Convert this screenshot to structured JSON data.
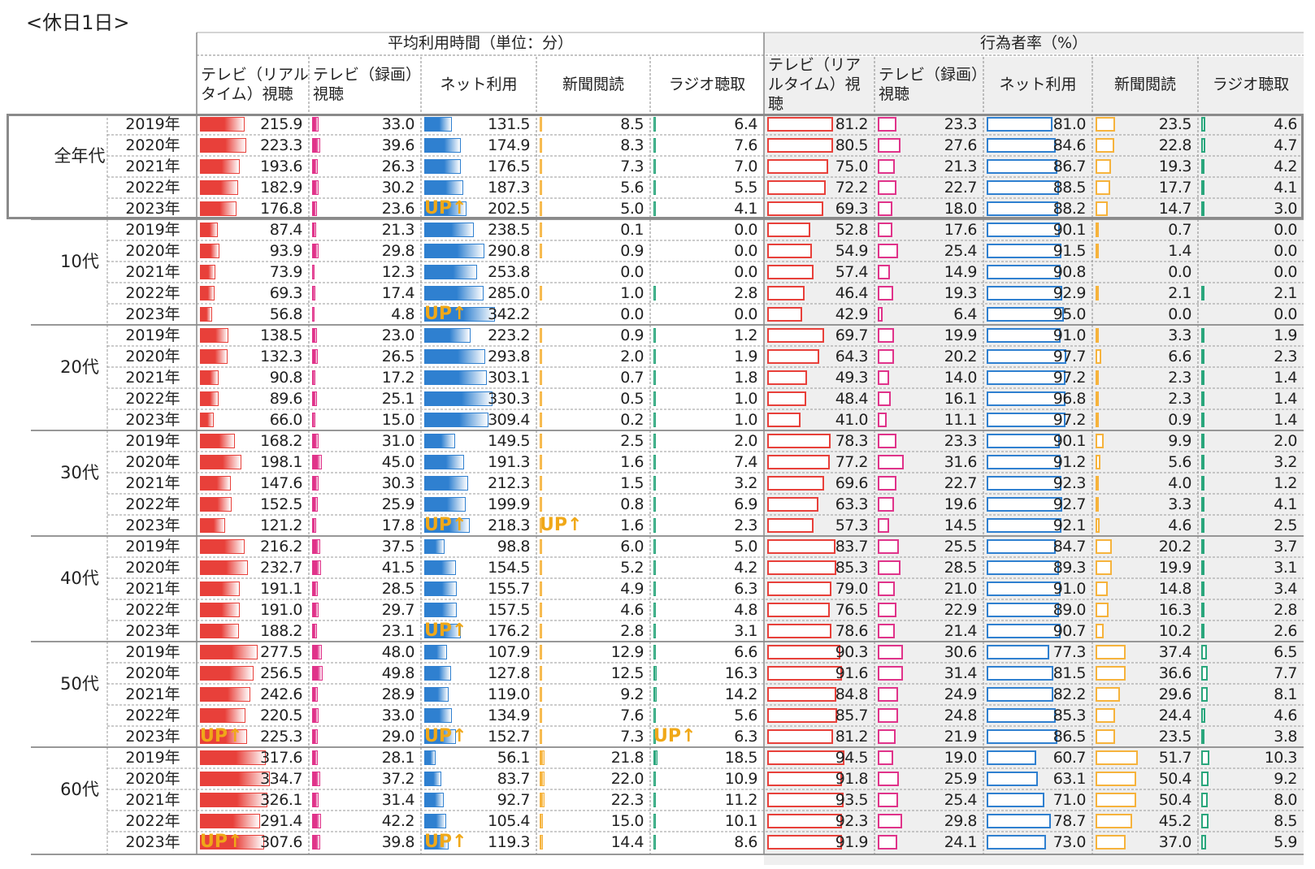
{
  "page_title": "<休日1日>",
  "headers": {
    "group_time": "平均利用時間（単位：分）",
    "group_rate": "行為者率（%）",
    "tv_live": "テレビ（リアルタイム）視聴",
    "tv_rec": "テレビ（録画）視聴",
    "net": "ネット利用",
    "news": "新聞閲読",
    "radio": "ラジオ聴取"
  },
  "badge_text": "UP↑",
  "colors": {
    "tv_live": "#e8403a",
    "tv_rec": "#e0338a",
    "net": "#2f80d0",
    "news": "#f6b33c",
    "radio": "#2aa67c"
  },
  "chart_data": {
    "type": "table",
    "title": "<休日1日>",
    "metrics": [
      "平均利用時間（単位：分）",
      "行為者率（%）"
    ],
    "media": [
      "テレビ（リアルタイム）視聴",
      "テレビ（録画）視聴",
      "ネット利用",
      "新聞閲読",
      "ラジオ聴取"
    ],
    "groups": [
      {
        "name": "全年代",
        "rows": [
          {
            "year": "2019年",
            "time": [
              "215.9",
              "33.0",
              "131.5",
              "8.5",
              "6.4"
            ],
            "rate": [
              "81.2",
              "23.3",
              "81.0",
              "23.5",
              "4.6"
            ]
          },
          {
            "year": "2020年",
            "time": [
              "223.3",
              "39.6",
              "174.9",
              "8.3",
              "7.6"
            ],
            "rate": [
              "80.5",
              "27.6",
              "84.6",
              "22.8",
              "4.7"
            ]
          },
          {
            "year": "2021年",
            "time": [
              "193.6",
              "26.3",
              "176.5",
              "7.3",
              "7.0"
            ],
            "rate": [
              "75.0",
              "21.3",
              "86.7",
              "19.3",
              "4.2"
            ]
          },
          {
            "year": "2022年",
            "time": [
              "182.9",
              "30.2",
              "187.3",
              "5.6",
              "5.5"
            ],
            "rate": [
              "72.2",
              "22.7",
              "88.5",
              "17.7",
              "4.1"
            ]
          },
          {
            "year": "2023年",
            "time": [
              "176.8",
              "23.6",
              "202.5",
              "5.0",
              "4.1"
            ],
            "rate": [
              "69.3",
              "18.0",
              "88.2",
              "14.7",
              "3.0"
            ],
            "up": [
              2
            ]
          }
        ]
      },
      {
        "name": "10代",
        "rows": [
          {
            "year": "2019年",
            "time": [
              "87.4",
              "21.3",
              "238.5",
              "0.1",
              "0.0"
            ],
            "rate": [
              "52.8",
              "17.6",
              "90.1",
              "0.7",
              "0.0"
            ]
          },
          {
            "year": "2020年",
            "time": [
              "93.9",
              "29.8",
              "290.8",
              "0.9",
              "0.0"
            ],
            "rate": [
              "54.9",
              "25.4",
              "91.5",
              "1.4",
              "0.0"
            ]
          },
          {
            "year": "2021年",
            "time": [
              "73.9",
              "12.3",
              "253.8",
              "0.0",
              "0.0"
            ],
            "rate": [
              "57.4",
              "14.9",
              "90.8",
              "0.0",
              "0.0"
            ]
          },
          {
            "year": "2022年",
            "time": [
              "69.3",
              "17.4",
              "285.0",
              "1.0",
              "2.8"
            ],
            "rate": [
              "46.4",
              "19.3",
              "92.9",
              "2.1",
              "2.1"
            ]
          },
          {
            "year": "2023年",
            "time": [
              "56.8",
              "4.8",
              "342.2",
              "0.0",
              "0.0"
            ],
            "rate": [
              "42.9",
              "6.4",
              "95.0",
              "0.0",
              "0.0"
            ],
            "up": [
              2
            ]
          }
        ]
      },
      {
        "name": "20代",
        "rows": [
          {
            "year": "2019年",
            "time": [
              "138.5",
              "23.0",
              "223.2",
              "0.9",
              "1.2"
            ],
            "rate": [
              "69.7",
              "19.9",
              "91.0",
              "3.3",
              "1.9"
            ]
          },
          {
            "year": "2020年",
            "time": [
              "132.3",
              "26.5",
              "293.8",
              "2.0",
              "1.9"
            ],
            "rate": [
              "64.3",
              "20.2",
              "97.7",
              "6.6",
              "2.3"
            ]
          },
          {
            "year": "2021年",
            "time": [
              "90.8",
              "17.2",
              "303.1",
              "0.7",
              "1.8"
            ],
            "rate": [
              "49.3",
              "14.0",
              "97.2",
              "2.3",
              "1.4"
            ]
          },
          {
            "year": "2022年",
            "time": [
              "89.6",
              "25.1",
              "330.3",
              "0.5",
              "1.0"
            ],
            "rate": [
              "48.4",
              "16.1",
              "96.8",
              "2.3",
              "1.4"
            ]
          },
          {
            "year": "2023年",
            "time": [
              "66.0",
              "15.0",
              "309.4",
              "0.2",
              "1.0"
            ],
            "rate": [
              "41.0",
              "11.1",
              "97.2",
              "0.9",
              "1.4"
            ]
          }
        ]
      },
      {
        "name": "30代",
        "rows": [
          {
            "year": "2019年",
            "time": [
              "168.2",
              "31.0",
              "149.5",
              "2.5",
              "2.0"
            ],
            "rate": [
              "78.3",
              "23.3",
              "90.1",
              "9.9",
              "2.0"
            ]
          },
          {
            "year": "2020年",
            "time": [
              "198.1",
              "45.0",
              "191.3",
              "1.6",
              "7.4"
            ],
            "rate": [
              "77.2",
              "31.6",
              "91.2",
              "5.6",
              "3.2"
            ]
          },
          {
            "year": "2021年",
            "time": [
              "147.6",
              "30.3",
              "212.3",
              "1.5",
              "3.2"
            ],
            "rate": [
              "69.6",
              "22.7",
              "92.3",
              "4.0",
              "1.2"
            ]
          },
          {
            "year": "2022年",
            "time": [
              "152.5",
              "25.9",
              "199.9",
              "0.8",
              "6.9"
            ],
            "rate": [
              "63.3",
              "19.6",
              "92.7",
              "3.3",
              "4.1"
            ]
          },
          {
            "year": "2023年",
            "time": [
              "121.2",
              "17.8",
              "218.3",
              "1.6",
              "2.3"
            ],
            "rate": [
              "57.3",
              "14.5",
              "92.1",
              "4.6",
              "2.5"
            ],
            "up": [
              2,
              3
            ]
          }
        ]
      },
      {
        "name": "40代",
        "rows": [
          {
            "year": "2019年",
            "time": [
              "216.2",
              "37.5",
              "98.8",
              "6.0",
              "5.0"
            ],
            "rate": [
              "83.7",
              "25.5",
              "84.7",
              "20.2",
              "3.7"
            ]
          },
          {
            "year": "2020年",
            "time": [
              "232.7",
              "41.5",
              "154.5",
              "5.2",
              "4.2"
            ],
            "rate": [
              "85.3",
              "28.5",
              "89.3",
              "19.9",
              "3.1"
            ]
          },
          {
            "year": "2021年",
            "time": [
              "191.1",
              "28.5",
              "155.7",
              "4.9",
              "6.3"
            ],
            "rate": [
              "79.0",
              "21.0",
              "91.0",
              "14.8",
              "3.4"
            ]
          },
          {
            "year": "2022年",
            "time": [
              "191.0",
              "29.7",
              "157.5",
              "4.6",
              "4.8"
            ],
            "rate": [
              "76.5",
              "22.9",
              "89.0",
              "16.3",
              "2.8"
            ]
          },
          {
            "year": "2023年",
            "time": [
              "188.2",
              "23.1",
              "176.2",
              "2.8",
              "3.1"
            ],
            "rate": [
              "78.6",
              "21.4",
              "90.7",
              "10.2",
              "2.6"
            ],
            "up": [
              2
            ]
          }
        ]
      },
      {
        "name": "50代",
        "rows": [
          {
            "year": "2019年",
            "time": [
              "277.5",
              "48.0",
              "107.9",
              "12.9",
              "6.6"
            ],
            "rate": [
              "90.3",
              "30.6",
              "77.3",
              "37.4",
              "6.5"
            ]
          },
          {
            "year": "2020年",
            "time": [
              "256.5",
              "49.8",
              "127.8",
              "12.5",
              "16.3"
            ],
            "rate": [
              "91.6",
              "31.4",
              "81.5",
              "36.6",
              "7.7"
            ]
          },
          {
            "year": "2021年",
            "time": [
              "242.6",
              "28.9",
              "119.0",
              "9.2",
              "14.2"
            ],
            "rate": [
              "84.8",
              "24.9",
              "82.2",
              "29.6",
              "8.1"
            ]
          },
          {
            "year": "2022年",
            "time": [
              "220.5",
              "33.0",
              "134.9",
              "7.6",
              "5.6"
            ],
            "rate": [
              "85.7",
              "24.8",
              "85.3",
              "24.4",
              "4.6"
            ]
          },
          {
            "year": "2023年",
            "time": [
              "225.3",
              "29.0",
              "152.7",
              "7.3",
              "6.3"
            ],
            "rate": [
              "81.2",
              "21.9",
              "86.5",
              "23.5",
              "3.8"
            ],
            "up": [
              0,
              2,
              4
            ]
          }
        ]
      },
      {
        "name": "60代",
        "rows": [
          {
            "year": "2019年",
            "time": [
              "317.6",
              "28.1",
              "56.1",
              "21.8",
              "18.5"
            ],
            "rate": [
              "94.5",
              "19.0",
              "60.7",
              "51.7",
              "10.3"
            ]
          },
          {
            "year": "2020年",
            "time": [
              "334.7",
              "37.2",
              "83.7",
              "22.0",
              "10.9"
            ],
            "rate": [
              "91.8",
              "25.9",
              "63.1",
              "50.4",
              "9.2"
            ]
          },
          {
            "year": "2021年",
            "time": [
              "326.1",
              "31.4",
              "92.7",
              "22.3",
              "11.2"
            ],
            "rate": [
              "93.5",
              "25.4",
              "71.0",
              "50.4",
              "8.0"
            ]
          },
          {
            "year": "2022年",
            "time": [
              "291.4",
              "42.2",
              "105.4",
              "15.0",
              "10.1"
            ],
            "rate": [
              "92.3",
              "29.8",
              "78.7",
              "45.2",
              "8.5"
            ]
          },
          {
            "year": "2023年",
            "time": [
              "307.6",
              "39.8",
              "119.3",
              "14.4",
              "8.6"
            ],
            "rate": [
              "91.9",
              "24.1",
              "73.0",
              "37.0",
              "5.9"
            ],
            "up": [
              0,
              2
            ]
          }
        ]
      }
    ]
  }
}
